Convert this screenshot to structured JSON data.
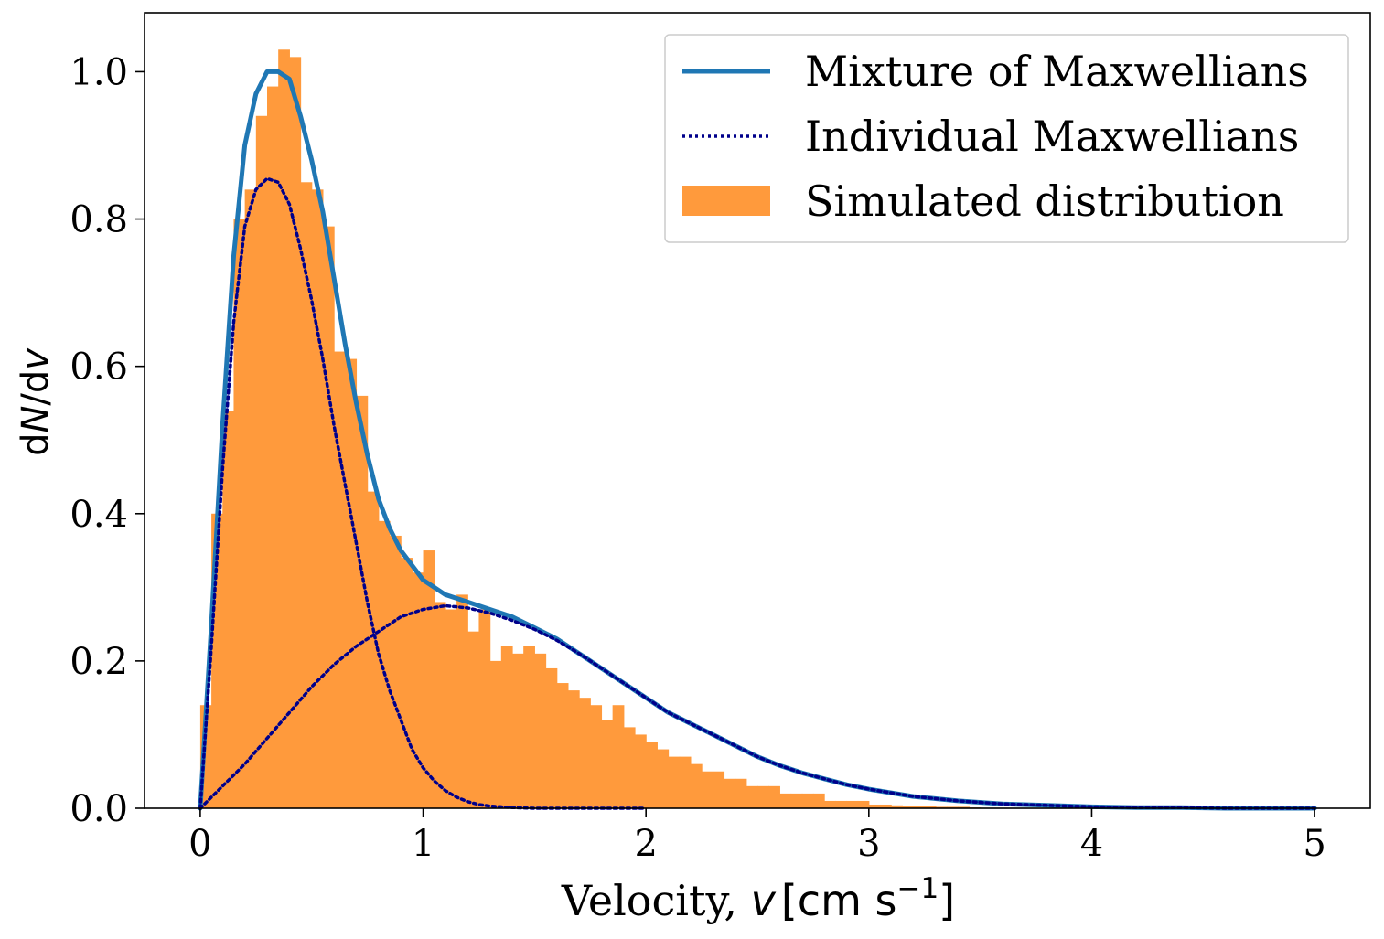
{
  "chart_data": {
    "type": "bar",
    "xlabel": {
      "prefix": "Velocity, ",
      "var": "v",
      "unit_open": "[cm s",
      "unit_sup": "−1",
      "unit_close": "]"
    },
    "ylabel": {
      "prefix": "d",
      "var1": "N",
      "mid": "/d",
      "var2": "v"
    },
    "xlim": [
      -0.25,
      5.25
    ],
    "ylim": [
      0.0,
      1.08
    ],
    "xticks": [
      0,
      1,
      2,
      3,
      4,
      5
    ],
    "xtick_labels": [
      "0",
      "1",
      "2",
      "3",
      "4",
      "5"
    ],
    "yticks": [
      0.0,
      0.2,
      0.4,
      0.6,
      0.8,
      1.0
    ],
    "ytick_labels": [
      "0.0",
      "0.2",
      "0.4",
      "0.6",
      "0.8",
      "1.0"
    ],
    "grid": false,
    "legend_position": "top-right",
    "colors": {
      "mixture": "#1f77b4",
      "individual": "#00008b",
      "histogram": "#ff9a3c"
    },
    "legend": [
      {
        "label": "Mixture of Maxwellians",
        "style": "solid",
        "color": "#1f77b4"
      },
      {
        "label": "Individual Maxwellians",
        "style": "dotted",
        "color": "#00008b"
      },
      {
        "label": "Simulated distribution",
        "style": "patch",
        "color": "#ff9a3c"
      }
    ],
    "histogram": {
      "bin_width": 0.05,
      "bin_start": 0.0,
      "values": [
        0.14,
        0.4,
        0.54,
        0.8,
        0.84,
        0.94,
        0.98,
        1.03,
        1.02,
        0.85,
        0.84,
        0.79,
        0.62,
        0.61,
        0.56,
        0.43,
        0.39,
        0.37,
        0.34,
        0.32,
        0.35,
        0.28,
        0.27,
        0.29,
        0.24,
        0.27,
        0.2,
        0.22,
        0.21,
        0.22,
        0.21,
        0.19,
        0.17,
        0.16,
        0.15,
        0.14,
        0.12,
        0.14,
        0.11,
        0.1,
        0.09,
        0.08,
        0.07,
        0.07,
        0.06,
        0.05,
        0.05,
        0.04,
        0.04,
        0.03,
        0.03,
        0.03,
        0.02,
        0.02,
        0.02,
        0.02,
        0.01,
        0.01,
        0.01,
        0.01,
        0.005,
        0.005,
        0.004,
        0.003,
        0.003,
        0.003,
        0.002,
        0.002,
        0.002,
        0.001
      ]
    },
    "series": [
      {
        "name": "Mixture of Maxwellians",
        "x": [
          0.0,
          0.05,
          0.1,
          0.15,
          0.2,
          0.25,
          0.3,
          0.35,
          0.4,
          0.45,
          0.5,
          0.55,
          0.6,
          0.65,
          0.7,
          0.75,
          0.8,
          0.85,
          0.9,
          0.95,
          1.0,
          1.1,
          1.2,
          1.3,
          1.4,
          1.5,
          1.6,
          1.7,
          1.8,
          1.9,
          2.0,
          2.1,
          2.2,
          2.3,
          2.4,
          2.5,
          2.6,
          2.7,
          2.8,
          2.9,
          3.0,
          3.2,
          3.4,
          3.6,
          3.8,
          4.0,
          4.2,
          4.4,
          4.6,
          4.8,
          5.0
        ],
        "values": [
          0.0,
          0.25,
          0.52,
          0.75,
          0.9,
          0.97,
          1.0,
          1.0,
          0.99,
          0.94,
          0.88,
          0.81,
          0.72,
          0.63,
          0.55,
          0.48,
          0.42,
          0.38,
          0.35,
          0.33,
          0.31,
          0.29,
          0.28,
          0.27,
          0.26,
          0.245,
          0.23,
          0.21,
          0.19,
          0.17,
          0.15,
          0.13,
          0.115,
          0.1,
          0.085,
          0.07,
          0.058,
          0.048,
          0.04,
          0.032,
          0.026,
          0.016,
          0.01,
          0.006,
          0.004,
          0.002,
          0.001,
          0.001,
          0.0,
          0.0,
          0.0
        ]
      },
      {
        "name": "Individual Maxwellians",
        "x": [
          0.0,
          0.05,
          0.1,
          0.15,
          0.2,
          0.25,
          0.3,
          0.35,
          0.4,
          0.45,
          0.5,
          0.55,
          0.6,
          0.65,
          0.7,
          0.75,
          0.8,
          0.85,
          0.9,
          0.95,
          1.0,
          1.05,
          1.1,
          1.15,
          1.2,
          1.25,
          1.3,
          1.35,
          1.4,
          1.5,
          1.6,
          1.8,
          2.0
        ],
        "values": [
          0.0,
          0.22,
          0.46,
          0.66,
          0.79,
          0.84,
          0.855,
          0.85,
          0.82,
          0.76,
          0.69,
          0.61,
          0.52,
          0.44,
          0.36,
          0.28,
          0.21,
          0.16,
          0.12,
          0.08,
          0.055,
          0.037,
          0.024,
          0.015,
          0.009,
          0.005,
          0.003,
          0.002,
          0.001,
          0.0,
          0.0,
          0.0,
          0.0
        ]
      },
      {
        "name": "Individual Maxwellians",
        "x": [
          0.0,
          0.1,
          0.2,
          0.3,
          0.4,
          0.5,
          0.6,
          0.7,
          0.8,
          0.9,
          1.0,
          1.1,
          1.2,
          1.3,
          1.4,
          1.5,
          1.6,
          1.7,
          1.8,
          1.9,
          2.0,
          2.1,
          2.2,
          2.3,
          2.4,
          2.5,
          2.6,
          2.7,
          2.8,
          2.9,
          3.0,
          3.2,
          3.4,
          3.6,
          3.8,
          4.0,
          4.2,
          4.4,
          4.6,
          4.8,
          5.0
        ],
        "values": [
          0.0,
          0.03,
          0.06,
          0.095,
          0.13,
          0.165,
          0.195,
          0.22,
          0.24,
          0.26,
          0.27,
          0.275,
          0.272,
          0.265,
          0.255,
          0.243,
          0.228,
          0.21,
          0.19,
          0.17,
          0.15,
          0.13,
          0.115,
          0.1,
          0.085,
          0.07,
          0.058,
          0.048,
          0.04,
          0.032,
          0.026,
          0.016,
          0.01,
          0.006,
          0.004,
          0.002,
          0.001,
          0.001,
          0.0,
          0.0,
          0.0
        ]
      }
    ]
  }
}
